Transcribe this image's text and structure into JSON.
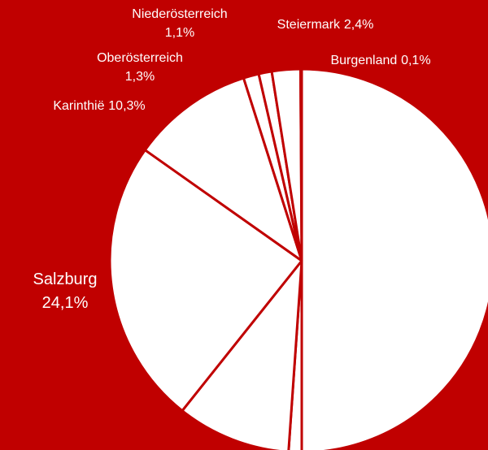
{
  "chart_data": {
    "type": "pie",
    "categories": [
      null,
      null,
      null,
      "Salzburg",
      "Karinthië",
      "Oberösterreich",
      "Niederösterreich",
      "Steiermark",
      "Burgenland"
    ],
    "values": [
      50.0,
      1.1,
      9.6,
      24.1,
      10.3,
      1.3,
      1.1,
      2.4,
      0.1
    ],
    "value_labels": [
      null,
      null,
      null,
      "24,1%",
      "10,3%",
      "1,3%",
      "1,1%",
      "2,4%",
      "0,1%"
    ],
    "color": "#ffffff",
    "background": "#c00000"
  }
}
